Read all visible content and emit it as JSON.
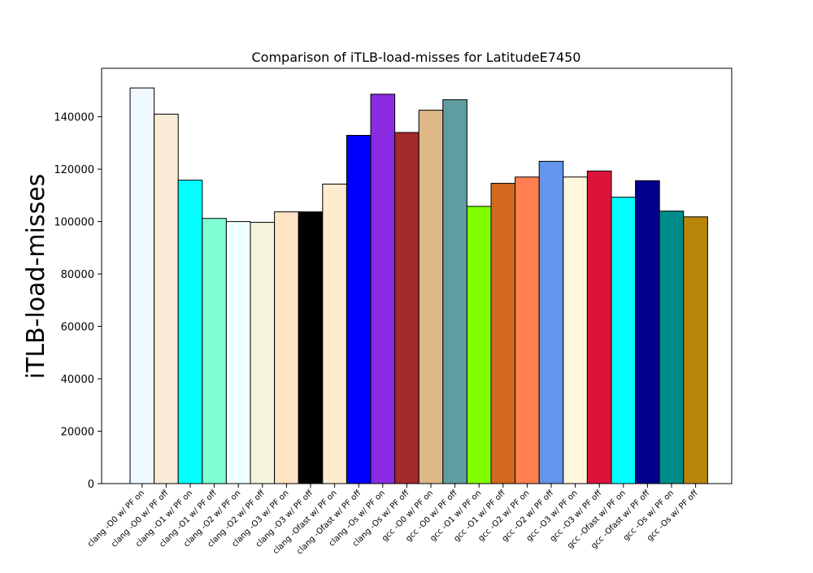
{
  "chart_data": {
    "type": "bar",
    "title": "Comparison of iTLB-load-misses for LatitudeE7450",
    "xlabel": "",
    "ylabel": "iTLB-load-misses",
    "ylim": [
      0,
      158500
    ],
    "yticks": [
      0,
      20000,
      40000,
      60000,
      80000,
      100000,
      120000,
      140000
    ],
    "grid": false,
    "categories": [
      "clang -O0 w/ PF on",
      "clang -O0 w/ PF off",
      "clang -O1 w/ PF on",
      "clang -O1 w/ PF off",
      "clang -O2 w/ PF on",
      "clang -O2 w/ PF off",
      "clang -O3 w/ PF on",
      "clang -O3 w/ PF off",
      "clang -Ofast w/ PF on",
      "clang -Ofast w/ PF off",
      "clang -Os w/ PF on",
      "clang -Os w/ PF off",
      "gcc -O0 w/ PF on",
      "gcc -O0 w/ PF off",
      "gcc -O1 w/ PF on",
      "gcc -O1 w/ PF off",
      "gcc -O2 w/ PF on",
      "gcc -O2 w/ PF off",
      "gcc -O3 w/ PF on",
      "gcc -O3 w/ PF off",
      "gcc -Ofast w/ PF on",
      "gcc -Ofast w/ PF off",
      "gcc -Os w/ PF on",
      "gcc -Os w/ PF off"
    ],
    "values": [
      151000,
      141000,
      115800,
      101200,
      100000,
      99700,
      103700,
      103700,
      114300,
      132900,
      148600,
      134000,
      142500,
      146500,
      105800,
      114600,
      117000,
      123000,
      117000,
      119300,
      109300,
      115600,
      104000,
      101800
    ],
    "colors": [
      "#f0f8ff",
      "#faebd7",
      "#00ffff",
      "#7fffd4",
      "#f0ffff",
      "#f5f5dc",
      "#ffe4c4",
      "#000000",
      "#ffebcd",
      "#0000ff",
      "#8a2be2",
      "#a52a2a",
      "#deb887",
      "#5f9ea0",
      "#7fff00",
      "#d2691e",
      "#ff7f50",
      "#6495ed",
      "#fff8dc",
      "#dc143c",
      "#00ffff",
      "#00008b",
      "#008b8b",
      "#b8860b"
    ]
  }
}
